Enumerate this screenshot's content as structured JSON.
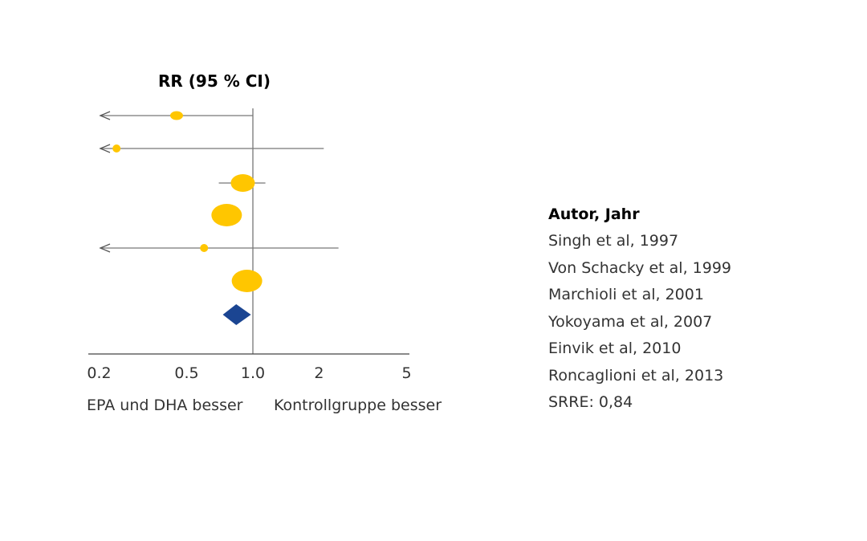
{
  "chart_data": {
    "type": "forest",
    "title": "RR (95 % CI)",
    "x_scale": "log",
    "xlim": [
      0.2,
      5
    ],
    "x_ticks": [
      "0.2",
      "0.5",
      "1.0",
      "2",
      "5"
    ],
    "x_tick_values": [
      0.2,
      0.5,
      1.0,
      2,
      5
    ],
    "reference_line": 1.0,
    "left_label": "EPA und DHA besser",
    "right_label": "Kontrollgruppe besser",
    "marker_color": "#FFC600",
    "summary_color": "#1B4592",
    "studies": [
      {
        "name": "Singh et al, 1997",
        "rr": 0.45,
        "lower": null,
        "upper": 1.0,
        "weight": "small",
        "lower_arrow": true
      },
      {
        "name": "Von Schacky et al, 1999",
        "rr": 0.24,
        "lower": null,
        "upper": 2.1,
        "weight": "very-small",
        "lower_arrow": true
      },
      {
        "name": "Marchioli et al, 2001",
        "rr": 0.9,
        "lower": 0.7,
        "upper": 1.14,
        "weight": "large",
        "lower_arrow": false
      },
      {
        "name": "Yokoyama et al, 2007",
        "rr": 0.76,
        "lower": null,
        "upper": null,
        "weight": "very-large",
        "lower_arrow": false
      },
      {
        "name": "Einvik et al, 2010",
        "rr": 0.6,
        "lower": null,
        "upper": 2.45,
        "weight": "very-small",
        "lower_arrow": true
      },
      {
        "name": "Roncaglioni et al, 2013",
        "rr": 0.94,
        "lower": null,
        "upper": null,
        "weight": "very-large",
        "lower_arrow": false
      }
    ],
    "summary": {
      "label": "SRRE: 0,84",
      "rr": 0.84,
      "lower": 0.73,
      "upper": 0.98
    }
  },
  "legend": {
    "header": "Autor, Jahr"
  }
}
